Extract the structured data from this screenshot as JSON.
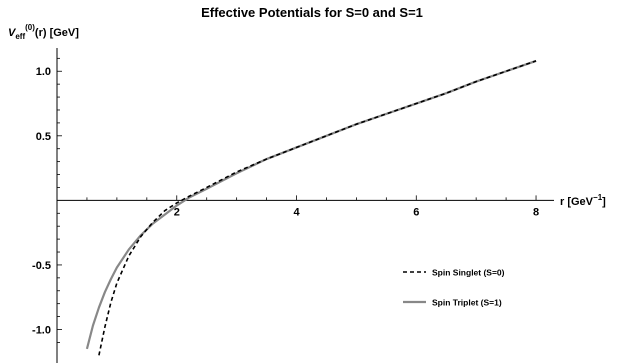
{
  "chart_data": {
    "type": "line",
    "title": "Effective Potentials for S=0 and S=1",
    "ylabel_parts": {
      "main": "V",
      "sub": "eff",
      "sup": "(0)",
      "rest": "(r) [GeV]"
    },
    "xlabel_parts": {
      "main": "r [GeV",
      "sup": "−1",
      "rest": "]"
    },
    "xlim": [
      0,
      8.3
    ],
    "ylim": [
      -1.12,
      1.18
    ],
    "x_ticks": [
      2,
      4,
      6,
      8
    ],
    "x_tick_labels": [
      "2",
      "4",
      "6",
      "8"
    ],
    "y_ticks": [
      1.0,
      0.5,
      -0.5,
      -1.0
    ],
    "y_tick_labels": [
      "1.0",
      "0.5",
      "-0.5",
      "-1.0"
    ],
    "grid": false,
    "legend_position": "bottom-right",
    "series": [
      {
        "name": "Spin Singlet (S=0)",
        "color": "#000000",
        "dash": "dashed",
        "x": [
          0.7,
          0.8,
          0.9,
          1.0,
          1.2,
          1.4,
          1.6,
          1.8,
          2.0,
          2.2,
          2.5,
          3.0,
          3.5,
          4.0,
          4.5,
          5.0,
          5.5,
          6.0,
          6.5,
          7.0,
          7.5,
          8.0
        ],
        "y": [
          -1.2,
          -0.98,
          -0.79,
          -0.64,
          -0.43,
          -0.28,
          -0.17,
          -0.08,
          -0.02,
          0.03,
          0.1,
          0.22,
          0.32,
          0.41,
          0.5,
          0.59,
          0.67,
          0.75,
          0.83,
          0.92,
          1.0,
          1.08
        ]
      },
      {
        "name": "Spin Triplet (S=1)",
        "color": "#888888",
        "dash": "solid",
        "x": [
          0.5,
          0.6,
          0.7,
          0.8,
          0.9,
          1.0,
          1.2,
          1.4,
          1.6,
          1.8,
          2.0,
          2.2,
          2.5,
          3.0,
          3.5,
          4.0,
          4.5,
          5.0,
          5.5,
          6.0,
          6.5,
          7.0,
          7.5,
          8.0
        ],
        "y": [
          -1.15,
          -0.97,
          -0.83,
          -0.71,
          -0.61,
          -0.52,
          -0.38,
          -0.27,
          -0.18,
          -0.11,
          -0.04,
          0.02,
          0.09,
          0.21,
          0.32,
          0.41,
          0.5,
          0.59,
          0.67,
          0.75,
          0.83,
          0.92,
          1.0,
          1.08
        ]
      }
    ]
  }
}
